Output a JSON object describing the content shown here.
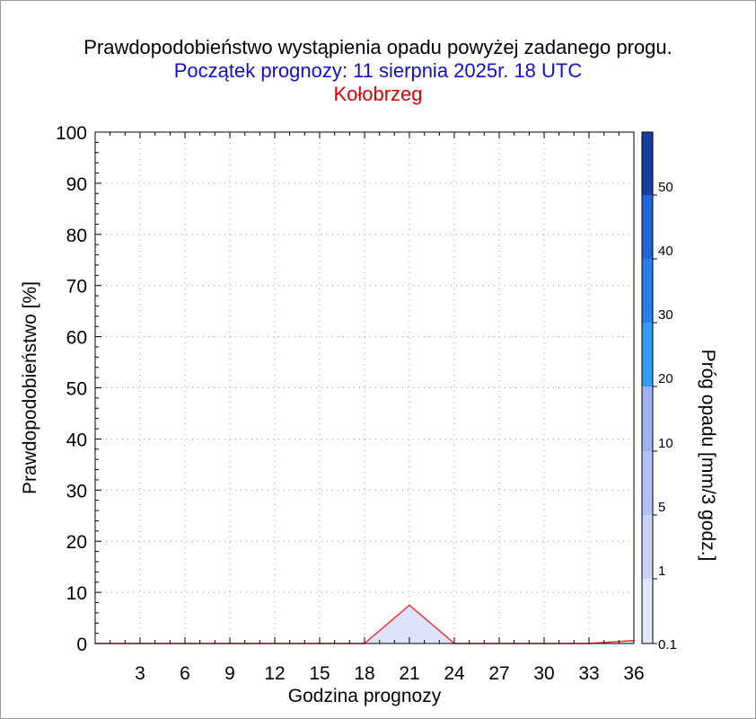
{
  "header": {
    "title": "Prawdopodobieństwo wystąpienia opadu powyżej zadanego progu.",
    "subtitle": "Początek prognozy: 11 sierpnia 2025r. 18 UTC",
    "station": "Kołobrzeg"
  },
  "chart_data": {
    "type": "area",
    "xlabel": "Godzina prognozy",
    "ylabel": "Prawdopodobieństwo [%]",
    "xlim": [
      0,
      36
    ],
    "ylim": [
      0,
      100
    ],
    "x_ticks": [
      3,
      6,
      9,
      12,
      15,
      18,
      21,
      24,
      27,
      30,
      33,
      36
    ],
    "y_ticks": [
      0,
      10,
      20,
      30,
      40,
      50,
      60,
      70,
      80,
      90,
      100
    ],
    "grid": true,
    "series": [
      {
        "name": "0.1",
        "color": "#ff3030",
        "fill": "#dde3fb",
        "x": [
          0,
          3,
          6,
          9,
          12,
          15,
          18,
          21,
          24,
          27,
          30,
          33,
          36
        ],
        "values": [
          0,
          0,
          0,
          0,
          0,
          0,
          0,
          7.5,
          0,
          0,
          0,
          0,
          0.6
        ]
      }
    ],
    "colorbar": {
      "label": "Próg opadu [mm/3 godz.]",
      "tick_labels": [
        "0.1",
        "1",
        "5",
        "10",
        "20",
        "30",
        "40",
        "50"
      ],
      "colors": [
        "#e1e7fc",
        "#c9d3f8",
        "#b3c2f6",
        "#9db1f2",
        "#2e9ef2",
        "#2680e8",
        "#1f66d6",
        "#1b53c2",
        "#16409f"
      ]
    }
  }
}
